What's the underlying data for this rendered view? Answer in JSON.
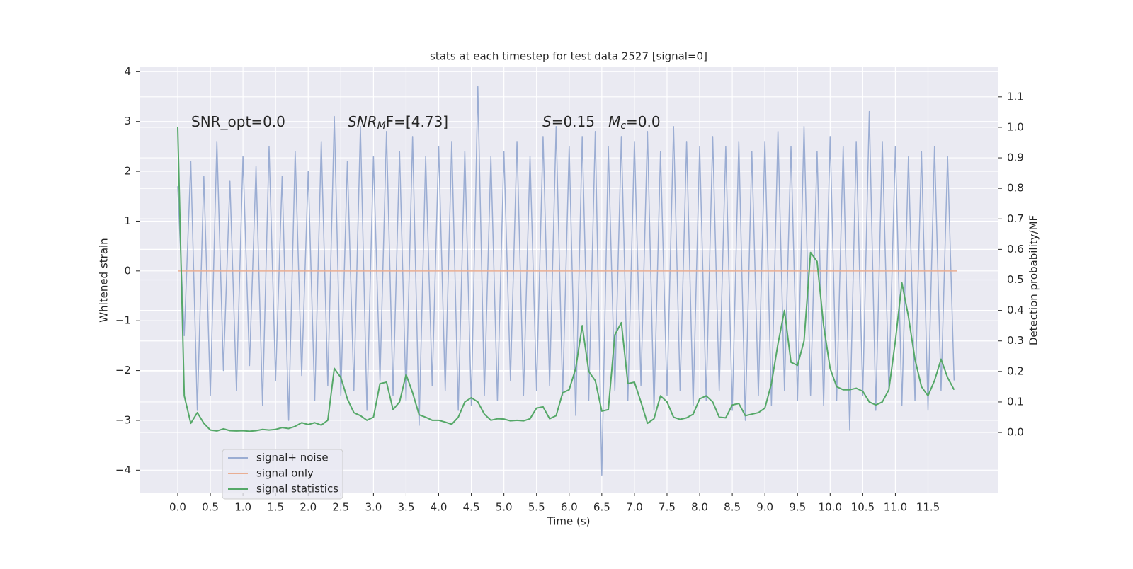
{
  "chart_data": {
    "type": "line",
    "title": "stats at each timestep for test data 2527 [signal=0]",
    "xlabel": "Time (s)",
    "ylabel": "Whitened strain",
    "y2label": "Detection probability/MF",
    "annotations": [
      [
        {
          "text": "SNR_opt=0.0"
        }
      ],
      [
        {
          "text": "SNR",
          "italic": true
        },
        {
          "text": "M",
          "italic": true,
          "sub": true
        },
        {
          "text": "F=[4.73]"
        }
      ],
      [
        {
          "text": "S",
          "italic": true
        },
        {
          "text": "=0.15   "
        },
        {
          "text": "M",
          "italic": true
        },
        {
          "text": "c",
          "italic": true,
          "sub": true
        },
        {
          "text": "=0.0"
        }
      ]
    ],
    "x": [
      0,
      0.1,
      0.2,
      0.3,
      0.4,
      0.5,
      0.6,
      0.7,
      0.8,
      0.9,
      1,
      1.1,
      1.2,
      1.3,
      1.4,
      1.5,
      1.6,
      1.7,
      1.8,
      1.9,
      2,
      2.1,
      2.2,
      2.3,
      2.4,
      2.5,
      2.6,
      2.7,
      2.8,
      2.9,
      3,
      3.1,
      3.2,
      3.3,
      3.4,
      3.5,
      3.6,
      3.7,
      3.8,
      3.9,
      4,
      4.1,
      4.2,
      4.3,
      4.4,
      4.5,
      4.6,
      4.7,
      4.8,
      4.9,
      5,
      5.1,
      5.2,
      5.3,
      5.4,
      5.5,
      5.6,
      5.7,
      5.8,
      5.9,
      6,
      6.1,
      6.2,
      6.3,
      6.4,
      6.5,
      6.6,
      6.7,
      6.8,
      6.9,
      7,
      7.1,
      7.2,
      7.3,
      7.4,
      7.5,
      7.6,
      7.7,
      7.8,
      7.9,
      8,
      8.1,
      8.2,
      8.3,
      8.4,
      8.5,
      8.6,
      8.7,
      8.8,
      8.9,
      9,
      9.1,
      9.2,
      9.3,
      9.4,
      9.5,
      9.6,
      9.7,
      9.8,
      9.9,
      10,
      10.1,
      10.2,
      10.3,
      10.4,
      10.5,
      10.6,
      10.7,
      10.8,
      10.9,
      11,
      11.1,
      11.2,
      11.3,
      11.4,
      11.5,
      11.6,
      11.7,
      11.8,
      11.9
    ],
    "series": [
      {
        "name": "signal+ noise",
        "color": "#9badd3",
        "values": [
          1.7,
          -1.3,
          2.2,
          -2.8,
          1.9,
          -2.5,
          2.6,
          -2.0,
          1.8,
          -2.4,
          2.3,
          -1.9,
          2.1,
          -2.7,
          2.5,
          -2.2,
          1.9,
          -3.0,
          2.4,
          -2.1,
          2.0,
          -2.6,
          2.6,
          -2.3,
          3.1,
          -2.5,
          2.2,
          -2.4,
          2.9,
          -2.8,
          2.3,
          -2.2,
          2.8,
          -2.5,
          2.4,
          -2.6,
          2.7,
          -3.1,
          2.3,
          -2.3,
          2.5,
          -2.4,
          2.6,
          -2.8,
          2.4,
          -2.7,
          3.7,
          -2.5,
          2.3,
          -2.6,
          2.4,
          -2.2,
          2.6,
          -2.5,
          2.3,
          -2.4,
          2.7,
          -2.3,
          2.9,
          -2.5,
          2.5,
          -2.9,
          2.7,
          -2.6,
          2.8,
          -4.1,
          2.5,
          -2.4,
          2.7,
          -2.6,
          2.6,
          -2.3,
          2.8,
          -2.8,
          2.4,
          -2.5,
          2.9,
          -2.4,
          2.6,
          -2.7,
          2.5,
          -2.6,
          2.7,
          -2.4,
          2.5,
          -2.8,
          2.6,
          -3.0,
          2.4,
          -2.5,
          2.6,
          -2.7,
          2.8,
          -2.4,
          2.5,
          -2.6,
          2.9,
          -2.5,
          2.4,
          -2.7,
          2.7,
          -2.6,
          2.5,
          -3.2,
          2.6,
          -2.5,
          3.2,
          -2.8,
          2.6,
          -2.4,
          2.5,
          -2.7,
          2.3,
          -2.6,
          2.4,
          -2.8,
          2.5,
          -2.4,
          2.3,
          -2.2
        ]
      },
      {
        "name": "signal only",
        "color": "#e9ae93",
        "x": [
          0,
          11.95
        ],
        "values": [
          0,
          0
        ]
      },
      {
        "name": "signal statistics",
        "color": "#55a868",
        "axis": "y2",
        "values": [
          1.0,
          0.12,
          0.03,
          0.065,
          0.03,
          0.008,
          0.005,
          0.012,
          0.006,
          0.005,
          0.006,
          0.004,
          0.006,
          0.01,
          0.008,
          0.01,
          0.016,
          0.013,
          0.02,
          0.032,
          0.026,
          0.032,
          0.024,
          0.04,
          0.21,
          0.18,
          0.11,
          0.065,
          0.055,
          0.04,
          0.05,
          0.16,
          0.165,
          0.075,
          0.1,
          0.19,
          0.13,
          0.058,
          0.05,
          0.04,
          0.04,
          0.034,
          0.027,
          0.05,
          0.1,
          0.114,
          0.1,
          0.06,
          0.04,
          0.045,
          0.044,
          0.038,
          0.04,
          0.038,
          0.045,
          0.08,
          0.084,
          0.045,
          0.055,
          0.13,
          0.14,
          0.21,
          0.35,
          0.2,
          0.17,
          0.07,
          0.075,
          0.32,
          0.36,
          0.16,
          0.165,
          0.1,
          0.03,
          0.045,
          0.12,
          0.1,
          0.05,
          0.043,
          0.048,
          0.06,
          0.11,
          0.12,
          0.1,
          0.05,
          0.048,
          0.09,
          0.095,
          0.055,
          0.06,
          0.065,
          0.08,
          0.16,
          0.29,
          0.4,
          0.23,
          0.22,
          0.3,
          0.59,
          0.56,
          0.35,
          0.21,
          0.15,
          0.14,
          0.14,
          0.145,
          0.135,
          0.1,
          0.09,
          0.1,
          0.14,
          0.3,
          0.49,
          0.38,
          0.24,
          0.15,
          0.12,
          0.17,
          0.24,
          0.18,
          0.14
        ]
      }
    ],
    "xlim": [
      -0.586,
      12.58
    ],
    "ylim": [
      -4.45,
      4.09
    ],
    "y2lim": [
      -0.197,
      1.197
    ],
    "xticks": [
      {
        "value": 0,
        "label": "0.0"
      },
      0.5,
      {
        "value": 1,
        "label": "1.0"
      },
      1.5,
      {
        "value": 2,
        "label": "2.0"
      },
      2.5,
      {
        "value": 3,
        "label": "3.0"
      },
      3.5,
      {
        "value": 4,
        "label": "4.0"
      },
      4.5,
      {
        "value": 5,
        "label": "5.0"
      },
      5.5,
      {
        "value": 6,
        "label": "6.0"
      },
      6.5,
      {
        "value": 7,
        "label": "7.0"
      },
      7.5,
      {
        "value": 8,
        "label": "8.0"
      },
      8.5,
      {
        "value": 9,
        "label": "9.0"
      },
      9.5,
      {
        "value": 10,
        "label": "10.0"
      },
      10.5,
      {
        "value": 11,
        "label": "11.0"
      },
      11.5
    ],
    "yticks": [
      {
        "value": -4,
        "label": "−4"
      },
      {
        "value": -3,
        "label": "−3"
      },
      {
        "value": -2,
        "label": "−2"
      },
      {
        "value": -1,
        "label": "−1"
      },
      0,
      1,
      2,
      3,
      4
    ],
    "y2ticks": [
      {
        "value": 0,
        "label": "0.0"
      },
      0.1,
      0.2,
      0.3,
      0.4,
      0.5,
      0.6,
      0.7,
      0.8,
      0.9,
      {
        "value": 1,
        "label": "1.0"
      },
      1.1
    ],
    "grid": true,
    "legend_loc": "lower left"
  }
}
